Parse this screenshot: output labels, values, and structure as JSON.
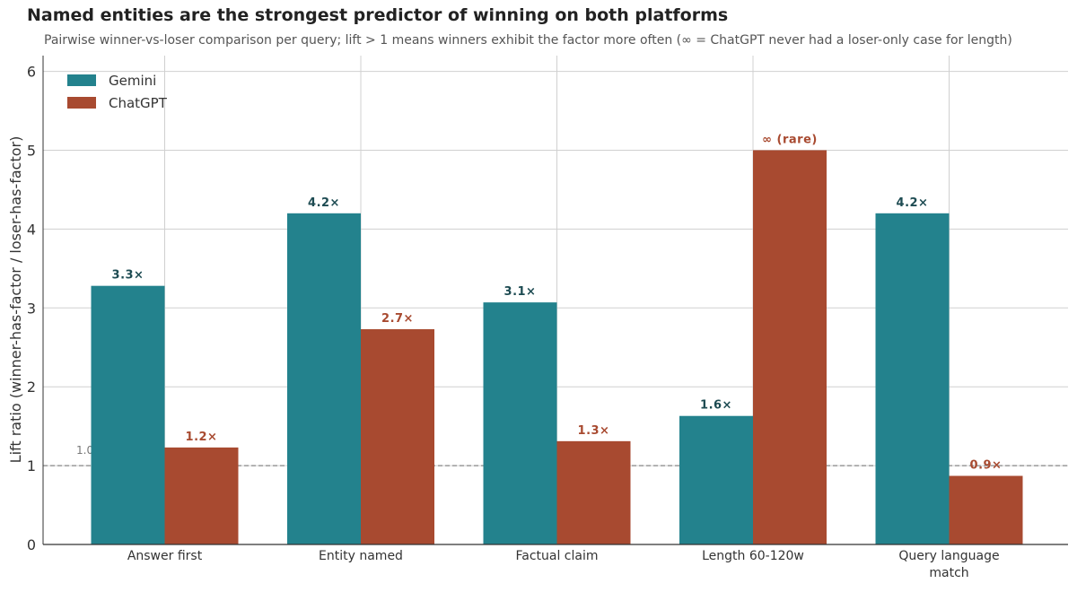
{
  "title": "Named entities are the strongest predictor of winning on both platforms",
  "subtitle": "Pairwise winner-vs-loser comparison per query; lift > 1 means winners exhibit the factor more often (∞ = ChatGPT never had a loser-only case for length)",
  "chart_data": {
    "type": "bar",
    "title": "Named entities are the strongest predictor of winning on both platforms",
    "subtitle": "Pairwise winner-vs-loser comparison per query; lift > 1 means winners exhibit the factor more often (∞ = ChatGPT never had a loser-only case for length)",
    "xlabel": "",
    "ylabel": "Lift ratio (winner-has-factor / loser-has-factor)",
    "ylim": [
      0,
      6.2
    ],
    "yticks": [
      0,
      1,
      2,
      3,
      4,
      5,
      6
    ],
    "categories": [
      "Answer first",
      "Entity named",
      "Factual claim",
      "Length 60-120w",
      "Query language match"
    ],
    "category_display": [
      [
        "Answer first"
      ],
      [
        "Entity named"
      ],
      [
        "Factual claim"
      ],
      [
        "Length 60-120w"
      ],
      [
        "Query language",
        "match"
      ]
    ],
    "series": [
      {
        "name": "Gemini",
        "color": "#23828d",
        "label_color": "#1d4b52",
        "values": [
          3.28,
          4.2,
          3.07,
          1.63,
          4.2
        ],
        "labels": [
          "3.3×",
          "4.2×",
          "3.1×",
          "1.6×",
          "4.2×"
        ]
      },
      {
        "name": "ChatGPT",
        "color": "#a84a30",
        "label_color": "#a84a30",
        "values": [
          1.23,
          2.73,
          1.31,
          5.0,
          0.87
        ],
        "labels": [
          "1.2×",
          "2.7×",
          "1.3×",
          "∞ (rare)",
          "0.9×"
        ]
      }
    ],
    "reference_line": {
      "y": 1,
      "label": "1.0 = no effect",
      "style": "dashed",
      "color": "#888888"
    },
    "grid": true,
    "legend_position": "top-left"
  }
}
